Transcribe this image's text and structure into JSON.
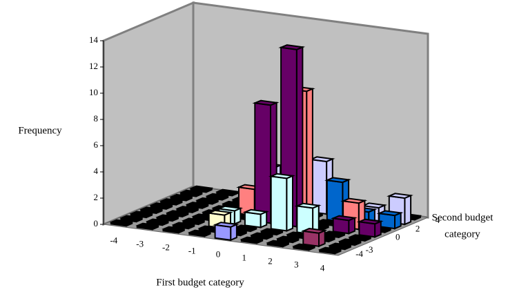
{
  "chart_data": {
    "type": "bar3d",
    "ylabel": "Frequency",
    "xlabel": "First budget category",
    "zlabel": [
      "Second budget",
      "category"
    ],
    "categories": [
      "-4",
      "-3",
      "-2",
      "-1",
      "0",
      "1",
      "2",
      "3",
      "4"
    ],
    "z_categories": [
      "-4",
      "-3",
      null,
      null,
      "0",
      null,
      "2",
      null,
      "4"
    ],
    "ylim": [
      0,
      14
    ],
    "yticks": [
      0,
      2,
      4,
      6,
      8,
      10,
      12,
      14
    ],
    "series": [
      {
        "color": "#9999ff",
        "values": [
          0,
          0,
          0,
          0,
          1,
          0,
          0,
          0,
          0
        ]
      },
      {
        "color": "#993366",
        "values": [
          0,
          0,
          0,
          0,
          0,
          0,
          0,
          1,
          0
        ]
      },
      {
        "color": "#ffffcc",
        "values": [
          0,
          0,
          0,
          1,
          0,
          0,
          0,
          0,
          0
        ]
      },
      {
        "color": "#ccffff",
        "values": [
          0,
          0,
          0,
          1,
          1,
          4,
          2,
          0,
          0
        ]
      },
      {
        "color": "#660066",
        "values": [
          0,
          0,
          0,
          0,
          9,
          13.5,
          0,
          1,
          1
        ]
      },
      {
        "color": "#ff8080",
        "values": [
          0,
          0,
          0,
          2,
          0,
          10,
          0,
          2,
          0
        ]
      },
      {
        "color": "#0066cc",
        "values": [
          0,
          0,
          0,
          0,
          1,
          0,
          3,
          1,
          1
        ]
      },
      {
        "color": "#ccccff",
        "values": [
          0,
          0,
          0,
          3,
          2,
          4,
          0,
          1,
          2
        ]
      },
      {
        "color": "#000080",
        "values": [
          0,
          0,
          0,
          0,
          0,
          0,
          0,
          0,
          0
        ]
      }
    ]
  }
}
